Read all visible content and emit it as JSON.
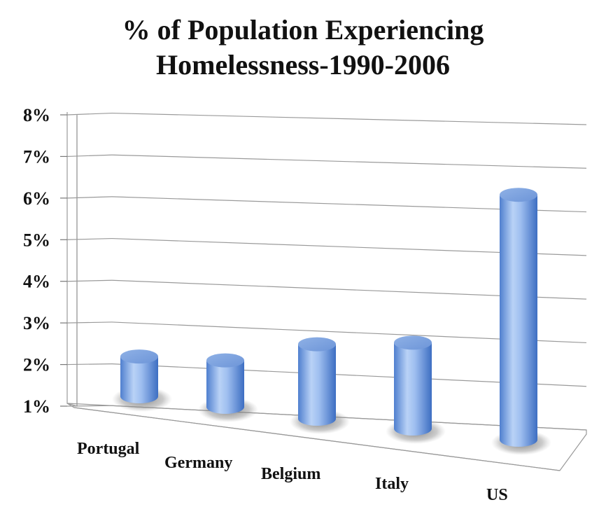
{
  "chart_data": {
    "type": "bar",
    "style": "3d-cylinder",
    "title_lines": [
      "% of Population Experiencing",
      "Homelessness-1990-2006"
    ],
    "categories": [
      "Portugal",
      "Germany",
      "Belgium",
      "Italy",
      "US"
    ],
    "values": [
      1.95,
      2.1,
      2.75,
      3.0,
      6.65
    ],
    "unit": "%",
    "ylim": [
      1,
      8
    ],
    "yticks": [
      "1%",
      "2%",
      "3%",
      "4%",
      "5%",
      "6%",
      "7%",
      "8%"
    ],
    "grid": true,
    "legend": false,
    "bar_color": "#5b8dd6"
  }
}
